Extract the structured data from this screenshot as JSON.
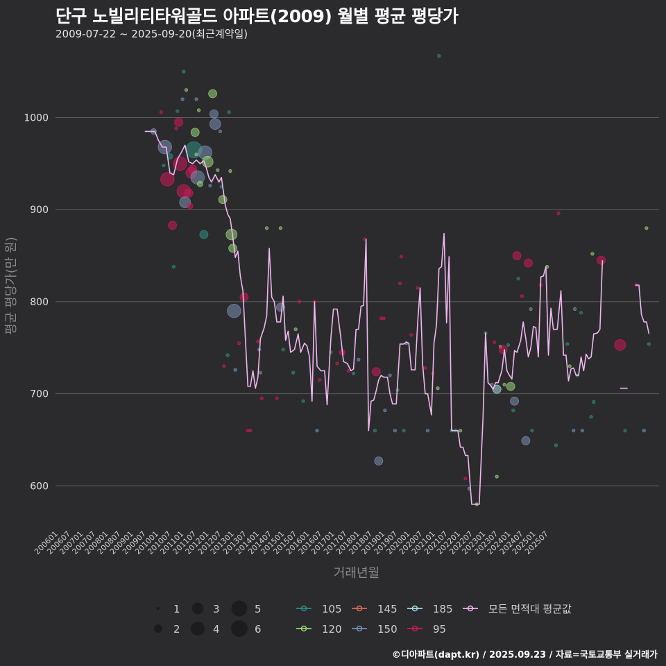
{
  "header": {
    "title": "단구 노빌리티타워골드 아파트(2009) 월별 평균 평당가",
    "subtitle": "2009-07-22 ~ 2025-09-20(최근계약일)"
  },
  "footer": {
    "credit": "©디아파트(dapt.kr) / 2025.09.23 / 자료=국토교통부 실거래가"
  },
  "colors": {
    "background": "#2b2b2d",
    "grid": "#5f5f5f",
    "avg_line": "#f0b6f0",
    "s105": "#2f8f80",
    "s120": "#9ad77a",
    "s145": "#e06a5a",
    "s150": "#7a90b0",
    "s185": "#a8dede",
    "s95": "#d0185a"
  },
  "chart_data": {
    "type": "scatter",
    "title": "단구 노빌리티타워골드 아파트(2009) 월별 평균 평당가",
    "xlabel": "거래년월",
    "ylabel": "평균 평당가(만 원)",
    "ylim": [
      555,
      1075
    ],
    "yticks": [
      600,
      700,
      800,
      900,
      1000
    ],
    "x_tick_labels": [
      "200601",
      "200607",
      "200701",
      "200707",
      "200801",
      "200807",
      "200901",
      "200907",
      "201001",
      "201007",
      "201101",
      "201107",
      "201201",
      "201207",
      "201301",
      "201307",
      "201401",
      "201407",
      "201501",
      "201507",
      "201601",
      "201607",
      "201701",
      "201707",
      "201801",
      "201807",
      "201901",
      "201907",
      "202001",
      "202007",
      "202101",
      "202107",
      "202201",
      "202207",
      "202301",
      "202307",
      "202401",
      "202407",
      "202501",
      "202507"
    ],
    "size_legend": {
      "labels": [
        "1",
        "2",
        "3",
        "4",
        "5",
        "6"
      ]
    },
    "color_legend": [
      {
        "label": "105",
        "key": "s105"
      },
      {
        "label": "120",
        "key": "s120"
      },
      {
        "label": "145",
        "key": "s145"
      },
      {
        "label": "150",
        "key": "s150"
      },
      {
        "label": "185",
        "key": "s185"
      },
      {
        "label": "95",
        "key": "s95"
      },
      {
        "label": "모든 면적대 평균값",
        "key": "avg_line"
      }
    ],
    "avg_line": [
      [
        2009.55,
        985
      ],
      [
        2009.95,
        985
      ],
      [
        2010.1,
        975
      ],
      [
        2010.25,
        968
      ],
      [
        2010.4,
        968
      ],
      [
        2010.55,
        940
      ],
      [
        2010.7,
        938
      ],
      [
        2010.85,
        955
      ],
      [
        2011.0,
        962
      ],
      [
        2011.15,
        970
      ],
      [
        2011.3,
        952
      ],
      [
        2011.45,
        950
      ],
      [
        2011.6,
        954
      ],
      [
        2011.75,
        950
      ],
      [
        2011.9,
        953
      ],
      [
        2012.0,
        945
      ],
      [
        2012.1,
        935
      ],
      [
        2012.2,
        930
      ],
      [
        2012.35,
        938
      ],
      [
        2012.5,
        930
      ],
      [
        2012.6,
        935
      ],
      [
        2012.75,
        905
      ],
      [
        2012.85,
        895
      ],
      [
        2012.95,
        890
      ],
      [
        2013.05,
        870
      ],
      [
        2013.15,
        848
      ],
      [
        2013.25,
        855
      ],
      [
        2013.35,
        828
      ],
      [
        2013.45,
        812
      ],
      [
        2013.55,
        760
      ],
      [
        2013.65,
        708
      ],
      [
        2013.75,
        708
      ],
      [
        2013.85,
        725
      ],
      [
        2013.95,
        706
      ],
      [
        2014.05,
        718
      ],
      [
        2014.15,
        760
      ],
      [
        2014.3,
        772
      ],
      [
        2014.4,
        785
      ],
      [
        2014.5,
        858
      ],
      [
        2014.6,
        805
      ],
      [
        2014.7,
        800
      ],
      [
        2014.8,
        778
      ],
      [
        2014.95,
        778
      ],
      [
        2015.05,
        806
      ],
      [
        2015.15,
        758
      ],
      [
        2015.25,
        768
      ],
      [
        2015.35,
        745
      ],
      [
        2015.5,
        748
      ],
      [
        2015.65,
        765
      ],
      [
        2015.75,
        745
      ],
      [
        2015.9,
        755
      ],
      [
        2016.0,
        752
      ],
      [
        2016.1,
        740
      ],
      [
        2016.2,
        692
      ],
      [
        2016.3,
        800
      ],
      [
        2016.4,
        730
      ],
      [
        2016.55,
        725
      ],
      [
        2016.7,
        725
      ],
      [
        2016.8,
        688
      ],
      [
        2016.95,
        760
      ],
      [
        2017.05,
        792
      ],
      [
        2017.2,
        792
      ],
      [
        2017.35,
        760
      ],
      [
        2017.45,
        735
      ],
      [
        2017.6,
        733
      ],
      [
        2017.75,
        725
      ],
      [
        2017.85,
        727
      ],
      [
        2017.95,
        770
      ],
      [
        2018.05,
        770
      ],
      [
        2018.15,
        795
      ],
      [
        2018.25,
        796
      ],
      [
        2018.35,
        868
      ],
      [
        2018.45,
        660
      ],
      [
        2018.55,
        692
      ],
      [
        2018.65,
        693
      ],
      [
        2018.75,
        703
      ],
      [
        2018.85,
        715
      ],
      [
        2018.95,
        720
      ],
      [
        2019.05,
        718
      ],
      [
        2019.2,
        718
      ],
      [
        2019.3,
        700
      ],
      [
        2019.4,
        689
      ],
      [
        2019.55,
        689
      ],
      [
        2019.7,
        754
      ],
      [
        2019.85,
        754
      ],
      [
        2019.95,
        756
      ],
      [
        2020.05,
        755
      ],
      [
        2020.15,
        726
      ],
      [
        2020.3,
        726
      ],
      [
        2020.4,
        777
      ],
      [
        2020.5,
        815
      ],
      [
        2020.6,
        732
      ],
      [
        2020.7,
        700
      ],
      [
        2020.8,
        700
      ],
      [
        2020.95,
        677
      ],
      [
        2021.05,
        755
      ],
      [
        2021.15,
        775
      ],
      [
        2021.25,
        836
      ],
      [
        2021.35,
        838
      ],
      [
        2021.45,
        874
      ],
      [
        2021.55,
        777
      ],
      [
        2021.65,
        849
      ],
      [
        2021.75,
        660
      ],
      [
        2021.9,
        660
      ],
      [
        2022.0,
        660
      ],
      [
        2022.1,
        642
      ],
      [
        2022.2,
        642
      ],
      [
        2022.3,
        633
      ],
      [
        2022.4,
        633
      ],
      [
        2022.55,
        580
      ],
      [
        2022.7,
        580
      ],
      [
        2022.85,
        580
      ],
      [
        2023.0,
        675
      ],
      [
        2023.1,
        766
      ],
      [
        2023.2,
        712
      ],
      [
        2023.3,
        709
      ],
      [
        2023.4,
        705
      ],
      [
        2023.5,
        712
      ],
      [
        2023.6,
        712
      ],
      [
        2023.75,
        725
      ],
      [
        2023.85,
        748
      ],
      [
        2023.95,
        725
      ],
      [
        2024.05,
        720
      ],
      [
        2024.15,
        716
      ],
      [
        2024.25,
        747
      ],
      [
        2024.35,
        745
      ],
      [
        2024.5,
        758
      ],
      [
        2024.6,
        778
      ],
      [
        2024.7,
        760
      ],
      [
        2024.8,
        740
      ],
      [
        2024.9,
        750
      ],
      [
        2025.0,
        773
      ],
      [
        2025.1,
        772
      ],
      [
        2025.2,
        740
      ],
      [
        2025.3,
        827
      ],
      [
        2025.4,
        828
      ],
      [
        2025.5,
        838
      ],
      [
        2025.6,
        742
      ],
      [
        2025.7,
        793
      ],
      [
        2025.8,
        770
      ],
      [
        2025.95,
        770
      ],
      [
        2026.1,
        812
      ],
      [
        2026.2,
        742
      ],
      [
        2026.3,
        742
      ],
      [
        2026.4,
        714
      ],
      [
        2026.5,
        727
      ],
      [
        2026.6,
        728
      ],
      [
        2026.7,
        720
      ],
      [
        2026.8,
        720
      ],
      [
        2026.9,
        740
      ],
      [
        2027.0,
        725
      ],
      [
        2027.1,
        743
      ],
      [
        2027.2,
        738
      ],
      [
        2027.3,
        740
      ],
      [
        2027.4,
        765
      ],
      [
        2027.55,
        766
      ],
      [
        2027.65,
        770
      ],
      [
        2027.75,
        845
      ],
      null,
      [
        2028.45,
        706
      ],
      [
        2028.75,
        706
      ],
      null,
      [
        2029.05,
        818
      ],
      [
        2029.2,
        818
      ],
      [
        2029.3,
        786
      ],
      [
        2029.4,
        778
      ],
      [
        2029.5,
        778
      ],
      [
        2029.6,
        765
      ]
    ],
    "points": [
      [
        2009.9,
        985,
        "s150",
        2
      ],
      [
        2010.2,
        1006,
        "s95",
        1
      ],
      [
        2010.3,
        948,
        "s105",
        1
      ],
      [
        2010.35,
        968,
        "s150",
        5
      ],
      [
        2010.45,
        933,
        "s95",
        5
      ],
      [
        2010.55,
        958,
        "s105",
        2
      ],
      [
        2010.65,
        883,
        "s95",
        3
      ],
      [
        2010.7,
        838,
        "s105",
        1
      ],
      [
        2010.8,
        988,
        "s95",
        1
      ],
      [
        2010.85,
        1007,
        "s105",
        1
      ],
      [
        2010.9,
        995,
        "s95",
        3
      ],
      [
        2010.95,
        950,
        "s95",
        5
      ],
      [
        2011.05,
        1020,
        "s150",
        1
      ],
      [
        2011.1,
        1050,
        "s105",
        1
      ],
      [
        2011.1,
        920,
        "s95",
        5
      ],
      [
        2011.15,
        908,
        "s150",
        4
      ],
      [
        2011.2,
        1030,
        "s120",
        1
      ],
      [
        2011.3,
        918,
        "s95",
        3
      ],
      [
        2011.35,
        904,
        "s95",
        2
      ],
      [
        2011.4,
        940,
        "s95",
        4
      ],
      [
        2011.45,
        944,
        "s95",
        3
      ],
      [
        2011.5,
        965,
        "s105",
        6
      ],
      [
        2011.55,
        984,
        "s120",
        3
      ],
      [
        2011.6,
        1020,
        "s150",
        1
      ],
      [
        2011.6,
        960,
        "s120",
        1
      ],
      [
        2011.65,
        935,
        "s150",
        5
      ],
      [
        2011.7,
        1008,
        "s120",
        1
      ],
      [
        2011.75,
        928,
        "s120",
        2
      ],
      [
        2011.9,
        873,
        "s105",
        3
      ],
      [
        2011.95,
        962,
        "s150",
        5
      ],
      [
        2012.05,
        952,
        "s120",
        4
      ],
      [
        2012.15,
        926,
        "s150",
        1
      ],
      [
        2012.25,
        1026,
        "s120",
        3
      ],
      [
        2012.3,
        1004,
        "s150",
        3
      ],
      [
        2012.35,
        993,
        "s150",
        4
      ],
      [
        2012.45,
        943,
        "s120",
        1
      ],
      [
        2012.55,
        985,
        "s150",
        1
      ],
      [
        2012.6,
        925,
        "s105",
        1
      ],
      [
        2012.65,
        911,
        "s120",
        3
      ],
      [
        2012.7,
        730,
        "s95",
        1
      ],
      [
        2012.85,
        742,
        "s105",
        1
      ],
      [
        2012.9,
        1006,
        "s105",
        1
      ],
      [
        2012.95,
        942,
        "s120",
        1
      ],
      [
        2013.0,
        873,
        "s120",
        4
      ],
      [
        2013.05,
        858,
        "s120",
        3
      ],
      [
        2013.1,
        790,
        "s150",
        5
      ],
      [
        2013.15,
        726,
        "s150",
        1
      ],
      [
        2013.3,
        755,
        "s95",
        1
      ],
      [
        2013.5,
        805,
        "s95",
        3
      ],
      [
        2013.65,
        660,
        "s95",
        1
      ],
      [
        2013.75,
        660,
        "s95",
        1
      ],
      [
        2014.05,
        757,
        "s95",
        1
      ],
      [
        2014.1,
        748,
        "s150",
        1
      ],
      [
        2014.15,
        723,
        "s150",
        1
      ],
      [
        2014.2,
        695,
        "s95",
        1
      ],
      [
        2014.4,
        880,
        "s120",
        1
      ],
      [
        2014.8,
        695,
        "s95",
        1
      ],
      [
        2014.95,
        880,
        "s120",
        1
      ],
      [
        2014.95,
        794,
        "s150",
        3
      ],
      [
        2015.05,
        748,
        "s105",
        1
      ],
      [
        2015.45,
        723,
        "s105",
        1
      ],
      [
        2015.55,
        770,
        "s120",
        1
      ],
      [
        2015.7,
        800,
        "s95",
        1
      ],
      [
        2015.85,
        692,
        "s105",
        1
      ],
      [
        2016.3,
        800,
        "s95",
        1
      ],
      [
        2016.4,
        660,
        "s150",
        1
      ],
      [
        2016.5,
        715,
        "s95",
        1
      ],
      [
        2016.95,
        745,
        "s105",
        1
      ],
      [
        2017.2,
        733,
        "s95",
        1
      ],
      [
        2017.4,
        745,
        "s95",
        2
      ],
      [
        2017.65,
        725,
        "s95",
        1
      ],
      [
        2017.85,
        722,
        "s105",
        1
      ],
      [
        2018.05,
        737,
        "s150",
        1
      ],
      [
        2018.3,
        868,
        "s95",
        1
      ],
      [
        2018.7,
        660,
        "s105",
        1
      ],
      [
        2018.75,
        724,
        "s95",
        3
      ],
      [
        2018.85,
        627,
        "s150",
        3
      ],
      [
        2018.95,
        782,
        "s95",
        1
      ],
      [
        2019.05,
        782,
        "s95",
        1
      ],
      [
        2019.1,
        682,
        "s150",
        1
      ],
      [
        2019.3,
        720,
        "s150",
        1
      ],
      [
        2019.5,
        660,
        "s150",
        1
      ],
      [
        2019.6,
        704,
        "s105",
        1
      ],
      [
        2019.7,
        820,
        "s95",
        1
      ],
      [
        2019.75,
        849,
        "s95",
        1
      ],
      [
        2019.85,
        660,
        "s105",
        1
      ],
      [
        2019.95,
        755,
        "s150",
        1
      ],
      [
        2020.15,
        764,
        "s95",
        1
      ],
      [
        2020.4,
        815,
        "s95",
        1
      ],
      [
        2020.7,
        728,
        "s95",
        1
      ],
      [
        2020.8,
        660,
        "s150",
        1
      ],
      [
        2021.0,
        722,
        "s95",
        1
      ],
      [
        2021.2,
        706,
        "s120",
        1
      ],
      [
        2021.25,
        1067,
        "s105",
        1
      ],
      [
        2021.75,
        660,
        "s105",
        1
      ],
      [
        2021.9,
        660,
        "s105",
        1
      ],
      [
        2022.1,
        660,
        "s120",
        1
      ],
      [
        2022.3,
        608,
        "s95",
        1
      ],
      [
        2022.45,
        597,
        "s150",
        1
      ],
      [
        2022.75,
        580,
        "s120",
        1
      ],
      [
        2023.1,
        766,
        "s105",
        1
      ],
      [
        2023.35,
        710,
        "s150",
        1
      ],
      [
        2023.45,
        756,
        "s95",
        1
      ],
      [
        2023.55,
        705,
        "s185",
        3
      ],
      [
        2023.55,
        610,
        "s120",
        1
      ],
      [
        2023.7,
        751,
        "s120",
        1
      ],
      [
        2023.8,
        748,
        "s95",
        3
      ],
      [
        2023.85,
        710,
        "s120",
        1
      ],
      [
        2024.0,
        753,
        "s105",
        1
      ],
      [
        2024.1,
        708,
        "s120",
        3
      ],
      [
        2024.2,
        682,
        "s105",
        1
      ],
      [
        2024.25,
        692,
        "s150",
        3
      ],
      [
        2024.35,
        850,
        "s95",
        3
      ],
      [
        2024.4,
        825,
        "s105",
        1
      ],
      [
        2024.55,
        806,
        "s95",
        1
      ],
      [
        2024.7,
        649,
        "s150",
        3
      ],
      [
        2024.8,
        842,
        "s95",
        3
      ],
      [
        2024.95,
        660,
        "s105",
        1
      ],
      [
        2024.9,
        792,
        "s150",
        1
      ],
      [
        2025.3,
        818,
        "s95",
        1
      ],
      [
        2025.55,
        838,
        "s120",
        1
      ],
      [
        2025.9,
        644,
        "s105",
        1
      ],
      [
        2026.0,
        896,
        "s95",
        1
      ],
      [
        2026.35,
        754,
        "s105",
        1
      ],
      [
        2026.45,
        730,
        "s120",
        1
      ],
      [
        2026.6,
        660,
        "s150",
        1
      ],
      [
        2026.65,
        792,
        "s150",
        1
      ],
      [
        2026.75,
        720,
        "s105",
        1
      ],
      [
        2026.9,
        788,
        "s105",
        1
      ],
      [
        2026.95,
        660,
        "s150",
        1
      ],
      [
        2027.3,
        675,
        "s105",
        1
      ],
      [
        2027.35,
        852,
        "s120",
        1
      ],
      [
        2027.4,
        691,
        "s105",
        1
      ],
      [
        2027.7,
        845,
        "s95",
        3
      ],
      [
        2028.45,
        753,
        "s95",
        4
      ],
      [
        2028.65,
        660,
        "s105",
        1
      ],
      [
        2029.1,
        818,
        "s95",
        1
      ],
      [
        2029.4,
        660,
        "s150",
        1
      ],
      [
        2029.5,
        880,
        "s120",
        1
      ],
      [
        2029.6,
        754,
        "s105",
        1
      ]
    ]
  }
}
